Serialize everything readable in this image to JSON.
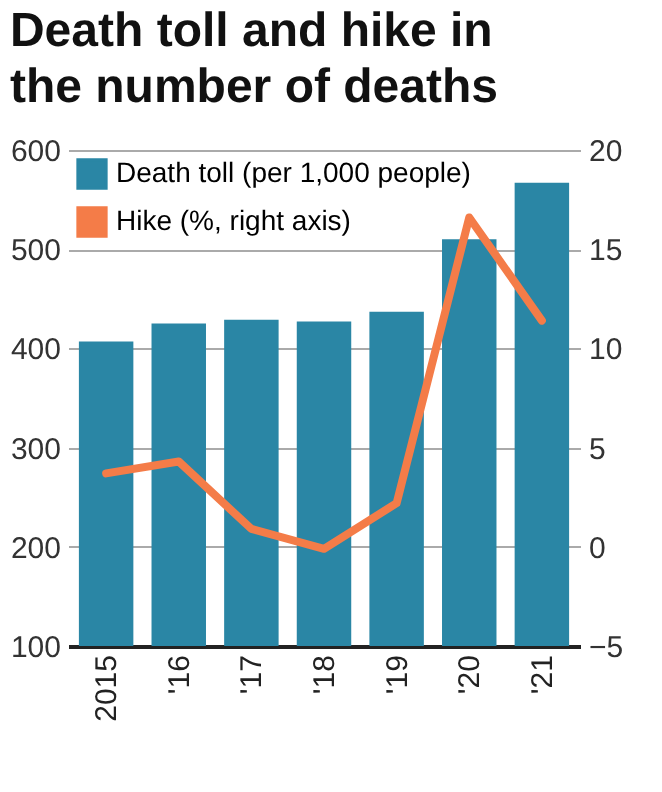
{
  "chart_data": {
    "type": "bar",
    "title": "Death toll and hike in the number of deaths",
    "categories": [
      "2015",
      "'16",
      "'17",
      "'18",
      "'19",
      "'20",
      "'21"
    ],
    "series": [
      {
        "name": "Death toll (per 1,000 people)",
        "color": "#2a86a5",
        "values": [
          407,
          425,
          429,
          427,
          437,
          510,
          567
        ]
      },
      {
        "name": "Hike (%, right axis)",
        "type": "line",
        "axis": "y2",
        "color": "#f47c48",
        "values": [
          3.7,
          4.3,
          0.9,
          -0.1,
          2.2,
          16.6,
          11.4
        ]
      }
    ],
    "ylim": [
      100,
      600
    ],
    "yticks": [
      100,
      200,
      300,
      400,
      500,
      600
    ],
    "y2lim": [
      -5,
      20
    ],
    "y2ticks": [
      -5,
      0,
      5,
      10,
      15,
      20
    ],
    "grid": "y",
    "legend": "top left"
  }
}
